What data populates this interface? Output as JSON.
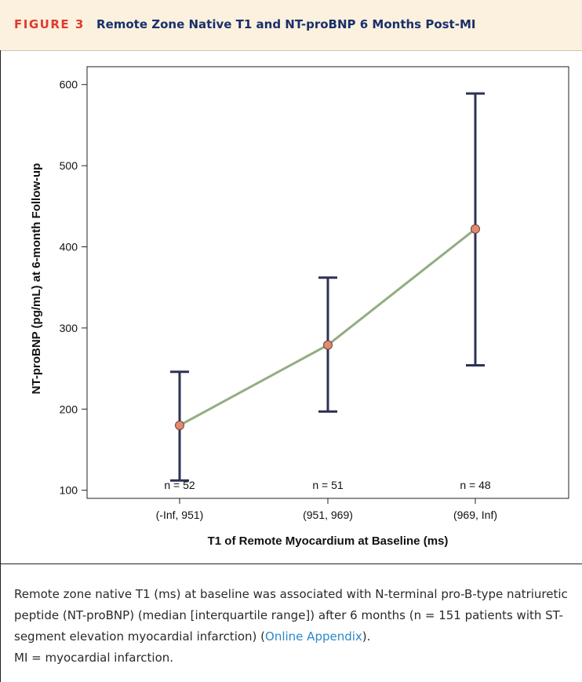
{
  "figure": {
    "label": "FIGURE 3",
    "title": "Remote Zone Native T1 and NT-proBNP 6 Months Post-MI"
  },
  "chart_data": {
    "type": "line",
    "xlabel": "T1 of Remote Myocardium at Baseline (ms)",
    "ylabel": "NT-proBNP (pg/mL) at 6-month Follow-up",
    "categories": [
      "(-Inf, 951)",
      "(951, 969)",
      "(969, Inf)"
    ],
    "values": [
      180,
      279,
      422
    ],
    "error_low": [
      112,
      197,
      254
    ],
    "error_high": [
      246,
      362,
      589
    ],
    "n_labels": [
      "n = 52",
      "n = 51",
      "n = 48"
    ],
    "yticks": [
      100,
      200,
      300,
      400,
      500,
      600
    ],
    "ylim": [
      90,
      622
    ],
    "line_color": "#93ad82",
    "marker_color": "#e08b6f",
    "errorbar_color": "#2d3256"
  },
  "caption": {
    "text_before": "Remote zone native T1 (ms) at baseline was associated with N-terminal pro-B-type natriuretic peptide (NT-proBNP) (median [interquartile range]) after 6 months (n = 151 patients with ST-segment elevation myocardial infarction) (",
    "link": "Online Appendix",
    "text_after": ").",
    "abbreviation": "MI = myocardial infarction."
  }
}
